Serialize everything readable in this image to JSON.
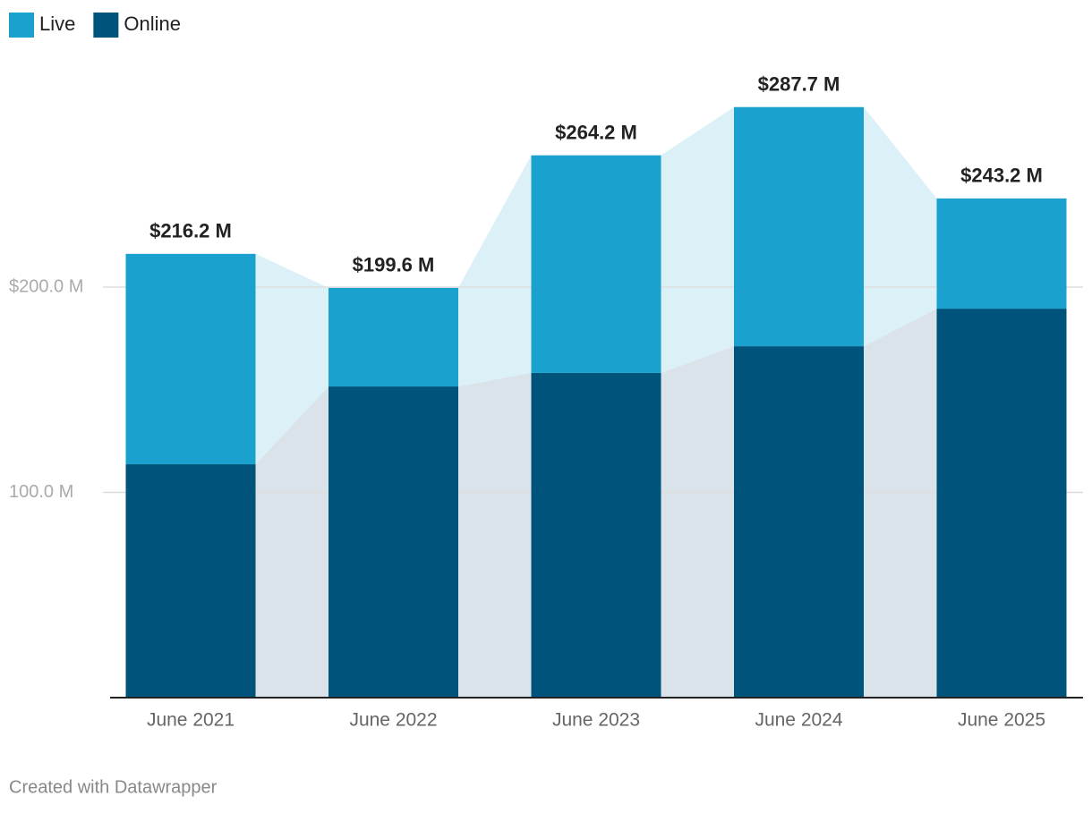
{
  "chart_data": {
    "type": "stacked-bar",
    "categories": [
      "June 2021",
      "June 2022",
      "June 2023",
      "June 2024",
      "June 2025"
    ],
    "series": [
      {
        "name": "Online",
        "color": "#00537a",
        "area_color": "#dae3ea",
        "values": [
          113.7,
          151.6,
          158.2,
          171.2,
          189.5
        ]
      },
      {
        "name": "Live",
        "color": "#1aa1cd",
        "area_color": "#dcf0f8",
        "values": [
          102.5,
          48.0,
          106.0,
          116.5,
          53.7
        ]
      }
    ],
    "totals": {
      "values": [
        216.2,
        199.6,
        264.2,
        287.7,
        243.2
      ],
      "value_labels": [
        "$216.2 M",
        "$199.6 M",
        "$264.2 M",
        "$287.7 M",
        "$243.2 M"
      ]
    },
    "legend_order": [
      1,
      0
    ],
    "ylim": [
      0,
      300
    ],
    "yticks": [
      {
        "value": 100,
        "label": "100.0 M"
      },
      {
        "value": 200,
        "label": "$200.0 M"
      }
    ],
    "grid": true,
    "footer": "Created with Datawrapper"
  }
}
